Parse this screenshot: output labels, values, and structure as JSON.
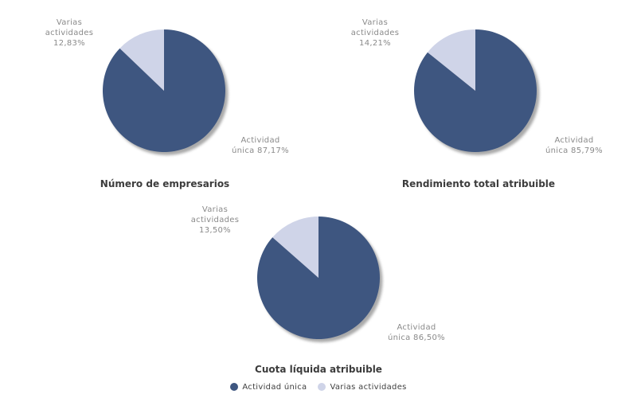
{
  "colors": {
    "actividad_unica": "#3E5680",
    "varias_actividades": "#CFD4E8",
    "shadow": "#9B9B9B",
    "label_text": "#8A8A8A",
    "title_text": "#3C3C3C",
    "legend_text": "#404040",
    "background": "#FFFFFF"
  },
  "chart_data": [
    {
      "type": "pie",
      "title": "Número de empresarios",
      "categories": [
        "Actividad única",
        "Varias actividades"
      ],
      "values": [
        87.17,
        12.83
      ],
      "slices": [
        {
          "name": "Actividad única",
          "value_pct": 87.17,
          "color": "#3E5680",
          "label": "Actividad\núnica 87,17%"
        },
        {
          "name": "Varias actividades",
          "value_pct": 12.83,
          "color": "#CFD4E8",
          "label": "Varias\nactividades\n12,83%"
        }
      ]
    },
    {
      "type": "pie",
      "title": "Rendimiento total atribuible",
      "categories": [
        "Actividad única",
        "Varias actividades"
      ],
      "values": [
        85.79,
        14.21
      ],
      "slices": [
        {
          "name": "Actividad única",
          "value_pct": 85.79,
          "color": "#3E5680",
          "label": "Actividad\núnica 85,79%"
        },
        {
          "name": "Varias actividades",
          "value_pct": 14.21,
          "color": "#CFD4E8",
          "label": "Varias\nactividades\n14,21%"
        }
      ]
    },
    {
      "type": "pie",
      "title": "Cuota líquida atribuible",
      "categories": [
        "Actividad única",
        "Varias actividades"
      ],
      "values": [
        86.5,
        13.5
      ],
      "slices": [
        {
          "name": "Actividad única",
          "value_pct": 86.5,
          "color": "#3E5680",
          "label": "Actividad\núnica 86,50%"
        },
        {
          "name": "Varias actividades",
          "value_pct": 13.5,
          "color": "#CFD4E8",
          "label": "Varias\nactividades\n13,50%"
        }
      ]
    }
  ],
  "legend": {
    "items": [
      {
        "label": "Actividad única",
        "color": "#3E5680"
      },
      {
        "label": "Varias actividades",
        "color": "#CFD4E8"
      }
    ]
  }
}
